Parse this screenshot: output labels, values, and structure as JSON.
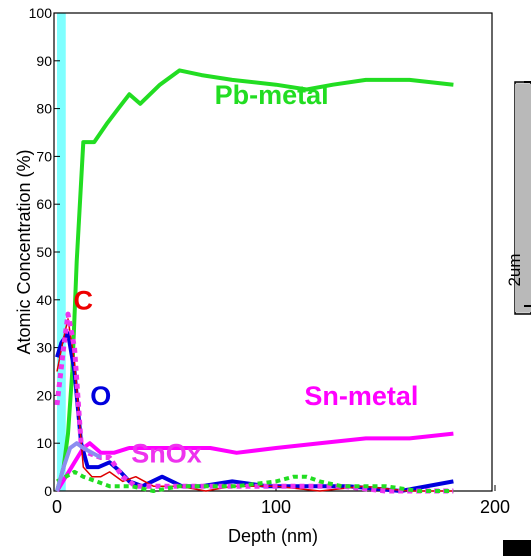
{
  "chart_data": {
    "type": "line",
    "title": "",
    "xlabel": "Depth (nm)",
    "ylabel": "Atomic Concentration (%)",
    "xlim": [
      0,
      200
    ],
    "ylim": [
      0,
      100
    ],
    "grid": false,
    "legend": "none",
    "x_ticks": [
      "0",
      "100",
      "200"
    ],
    "y_ticks": [
      "0",
      "10",
      "20",
      "30",
      "40",
      "50",
      "60",
      "70",
      "80",
      "90",
      "100"
    ],
    "highlight_band": {
      "x": [
        0,
        4
      ],
      "color": "#7fffff"
    },
    "series": [
      {
        "name": "Pb-metal",
        "color": "#22dd22",
        "style": "solid",
        "width": 4,
        "points": [
          [
            0,
            0
          ],
          [
            3,
            5
          ],
          [
            5,
            12
          ],
          [
            7,
            25
          ],
          [
            9,
            48
          ],
          [
            12,
            73
          ],
          [
            17,
            73
          ],
          [
            23,
            77
          ],
          [
            28,
            80
          ],
          [
            33,
            83
          ],
          [
            38,
            81
          ],
          [
            47,
            85
          ],
          [
            56,
            88
          ],
          [
            66,
            87
          ],
          [
            80,
            86
          ],
          [
            100,
            85
          ],
          [
            114,
            84
          ],
          [
            126,
            85
          ],
          [
            141,
            86
          ],
          [
            161,
            86
          ],
          [
            181,
            85
          ]
        ]
      },
      {
        "name": "Sn-metal",
        "color": "#ff00ff",
        "style": "solid",
        "width": 4,
        "points": [
          [
            0,
            0
          ],
          [
            4,
            3
          ],
          [
            8,
            6
          ],
          [
            12,
            9
          ],
          [
            15,
            10
          ],
          [
            20,
            8
          ],
          [
            26,
            8
          ],
          [
            33,
            9
          ],
          [
            42,
            9
          ],
          [
            56,
            9
          ],
          [
            70,
            9
          ],
          [
            82,
            8
          ],
          [
            100,
            9
          ],
          [
            120,
            10
          ],
          [
            141,
            11
          ],
          [
            161,
            11
          ],
          [
            181,
            12
          ]
        ]
      },
      {
        "name": "O",
        "color": "#0000dd",
        "style": "solid",
        "width": 4,
        "points": [
          [
            0,
            28
          ],
          [
            2,
            31
          ],
          [
            5,
            33
          ],
          [
            8,
            25
          ],
          [
            11,
            10
          ],
          [
            14,
            5
          ],
          [
            19,
            5
          ],
          [
            24,
            6
          ],
          [
            29,
            4
          ],
          [
            33,
            2
          ],
          [
            39,
            1
          ],
          [
            48,
            3
          ],
          [
            57,
            1
          ],
          [
            66,
            1
          ],
          [
            80,
            2
          ],
          [
            96,
            1
          ],
          [
            113,
            1
          ],
          [
            133,
            1
          ],
          [
            157,
            0
          ],
          [
            181,
            2
          ]
        ]
      },
      {
        "name": "C",
        "color": "#dd0000",
        "style": "solid",
        "width": 1.5,
        "points": [
          [
            0,
            25
          ],
          [
            3,
            32
          ],
          [
            5,
            36
          ],
          [
            8,
            27
          ],
          [
            12,
            5
          ],
          [
            16,
            3
          ],
          [
            20,
            3
          ],
          [
            24,
            4
          ],
          [
            30,
            2
          ],
          [
            36,
            3
          ],
          [
            44,
            1
          ],
          [
            56,
            1
          ],
          [
            68,
            0
          ],
          [
            80,
            1
          ],
          [
            100,
            1
          ],
          [
            120,
            0
          ],
          [
            140,
            1
          ],
          [
            160,
            0
          ],
          [
            181,
            0
          ]
        ]
      },
      {
        "name": "SnOx",
        "color": "#ee33ee",
        "style": "dotted",
        "width": 5,
        "points": [
          [
            0,
            18
          ],
          [
            3,
            30
          ],
          [
            5,
            37
          ],
          [
            8,
            30
          ],
          [
            11,
            10
          ],
          [
            14,
            8
          ],
          [
            20,
            7
          ],
          [
            24,
            7
          ],
          [
            30,
            3
          ],
          [
            36,
            1
          ],
          [
            44,
            1
          ],
          [
            56,
            1
          ],
          [
            70,
            1
          ],
          [
            90,
            1
          ],
          [
            110,
            1
          ],
          [
            130,
            1
          ],
          [
            150,
            0
          ],
          [
            181,
            0
          ]
        ]
      },
      {
        "name": "",
        "color": "#22dd22",
        "style": "dotted",
        "width": 4,
        "points": [
          [
            0,
            2
          ],
          [
            4,
            3
          ],
          [
            8,
            4
          ],
          [
            12,
            3
          ],
          [
            18,
            2
          ],
          [
            24,
            1
          ],
          [
            34,
            1
          ],
          [
            44,
            0
          ],
          [
            56,
            1
          ],
          [
            70,
            1
          ],
          [
            82,
            1
          ],
          [
            100,
            2
          ],
          [
            108,
            3
          ],
          [
            114,
            3
          ],
          [
            120,
            2
          ],
          [
            130,
            1
          ],
          [
            150,
            1
          ],
          [
            165,
            0
          ],
          [
            181,
            0
          ]
        ]
      },
      {
        "name": "",
        "color": "#8c8cf0",
        "style": "solid",
        "width": 4,
        "points": [
          [
            0,
            0
          ],
          [
            3,
            5
          ],
          [
            6,
            9
          ],
          [
            9,
            10
          ],
          [
            12,
            9
          ],
          [
            16,
            8
          ],
          [
            20,
            7
          ]
        ]
      }
    ],
    "annotations": [
      {
        "text": "Pb-metal",
        "color": "#22dd22",
        "x": 98,
        "y": 81
      },
      {
        "text": "C",
        "color": "#ee0000",
        "x": 12,
        "y": 38
      },
      {
        "text": "O",
        "color": "#0000dd",
        "x": 20,
        "y": 18
      },
      {
        "text": "Sn-metal",
        "color": "#ff00ff",
        "x": 139,
        "y": 18
      },
      {
        "text": "SnOx",
        "color": "#ee33ee",
        "x": 50,
        "y": 6
      }
    ]
  },
  "inset": {
    "label": "2um"
  }
}
